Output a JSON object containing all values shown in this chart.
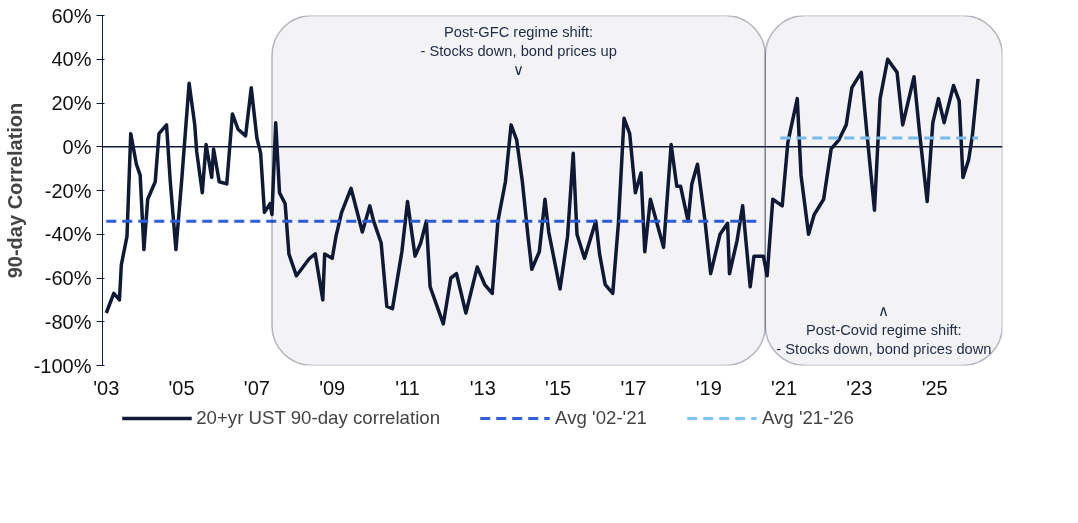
{
  "chart_data": {
    "type": "line",
    "ylabel": "90-day Correlation",
    "xlim": [
      2002.9,
      2026.8
    ],
    "ylim": [
      -100,
      60
    ],
    "xticks": [
      {
        "value": 2003,
        "label": "'03"
      },
      {
        "value": 2005,
        "label": "'05"
      },
      {
        "value": 2007,
        "label": "'07"
      },
      {
        "value": 2009,
        "label": "'09"
      },
      {
        "value": 2011,
        "label": "'11"
      },
      {
        "value": 2013,
        "label": "'13"
      },
      {
        "value": 2015,
        "label": "'15"
      },
      {
        "value": 2017,
        "label": "'17"
      },
      {
        "value": 2019,
        "label": "'19"
      },
      {
        "value": 2021,
        "label": "'21"
      },
      {
        "value": 2023,
        "label": "'23"
      },
      {
        "value": 2025,
        "label": "'25"
      }
    ],
    "yticks": [
      {
        "value": -100,
        "label": "-100%"
      },
      {
        "value": -80,
        "label": "-80%"
      },
      {
        "value": -60,
        "label": "-60%"
      },
      {
        "value": -40,
        "label": "-40%"
      },
      {
        "value": -20,
        "label": "-20%"
      },
      {
        "value": 0,
        "label": "0%"
      },
      {
        "value": 20,
        "label": "20%"
      },
      {
        "value": 40,
        "label": "40%"
      },
      {
        "value": 60,
        "label": "60%"
      }
    ],
    "grid": false,
    "legend": "bottom",
    "marker": "none",
    "series": [
      {
        "name": "20+yr UST 90-day correlation",
        "color": "#0f1a36",
        "line_style": "solid",
        "x": [
          2003.0,
          2003.2,
          2003.35,
          2003.4,
          2003.55,
          2003.65,
          2003.8,
          2003.9,
          2004.0,
          2004.1,
          2004.3,
          2004.4,
          2004.6,
          2004.7,
          2004.85,
          2005.0,
          2005.2,
          2005.35,
          2005.4,
          2005.55,
          2005.65,
          2005.8,
          2005.85,
          2006.0,
          2006.2,
          2006.35,
          2006.5,
          2006.7,
          2006.85,
          2007.0,
          2007.1,
          2007.2,
          2007.35,
          2007.4,
          2007.5,
          2007.6,
          2007.75,
          2007.85,
          2008.05,
          2008.4,
          2008.55,
          2008.75,
          2008.8,
          2009.0,
          2009.1,
          2009.25,
          2009.5,
          2009.8,
          2010.0,
          2010.1,
          2010.3,
          2010.45,
          2010.6,
          2010.85,
          2011.0,
          2011.2,
          2011.35,
          2011.5,
          2011.6,
          2011.95,
          2012.15,
          2012.3,
          2012.55,
          2012.85,
          2013.05,
          2013.25,
          2013.4,
          2013.6,
          2013.75,
          2013.9,
          2014.05,
          2014.2,
          2014.3,
          2014.5,
          2014.65,
          2014.75,
          2015.05,
          2015.25,
          2015.4,
          2015.5,
          2015.7,
          2016.0,
          2016.1,
          2016.25,
          2016.45,
          2016.6,
          2016.75,
          2016.9,
          2017.05,
          2017.2,
          2017.3,
          2017.45,
          2017.8,
          2018.0,
          2018.15,
          2018.25,
          2018.45,
          2018.55,
          2018.7,
          2018.9,
          2019.05,
          2019.3,
          2019.5,
          2019.55,
          2019.75,
          2019.9,
          2020.1,
          2020.2,
          2020.45,
          2020.55,
          2020.7,
          2020.95,
          2021.1,
          2021.35,
          2021.45,
          2021.65,
          2021.8,
          2022.05,
          2022.25,
          2022.45,
          2022.65,
          2022.8,
          2023.05,
          2023.2,
          2023.4,
          2023.55,
          2023.75,
          2024.0,
          2024.15,
          2024.45,
          2024.6,
          2024.8,
          2024.95,
          2025.1,
          2025.25,
          2025.5,
          2025.65,
          2025.75,
          2025.9,
          2026.0,
          2026.15
        ],
        "values": [
          -76,
          -67,
          -70,
          -54,
          -41,
          6,
          -8,
          -13,
          -47,
          -24,
          -16,
          6,
          10,
          -16,
          -47,
          -16,
          29,
          10,
          -2,
          -21,
          1,
          -14,
          -1,
          -16,
          -17,
          15,
          8,
          5,
          27,
          4,
          -3,
          -30,
          -26,
          -31,
          11,
          -21,
          -26,
          -49,
          -59,
          -51,
          -49,
          -70,
          -49,
          -51,
          -41,
          -30,
          -19,
          -39,
          -27,
          -34,
          -44,
          -73,
          -74,
          -48,
          -25,
          -50,
          -44,
          -34,
          -64,
          -81,
          -60,
          -58,
          -76,
          -55,
          -63,
          -67,
          -34,
          -16,
          10,
          3,
          -16,
          -41,
          -56,
          -48,
          -24,
          -39,
          -65,
          -41,
          -3,
          -40,
          -51,
          -34,
          -49,
          -63,
          -67,
          -35,
          13,
          6,
          -21,
          -12,
          -48,
          -24,
          -46,
          1,
          -18,
          -18,
          -34,
          -17,
          -8,
          -34,
          -58,
          -40,
          -35,
          -58,
          -43,
          -27,
          -64,
          -50,
          -50,
          -59,
          -24,
          -27,
          2,
          22,
          -13,
          -40,
          -31,
          -24,
          -1,
          3,
          10,
          27,
          34,
          6,
          -29,
          22,
          40,
          34,
          10,
          32,
          6,
          -25,
          11,
          22,
          11,
          28,
          21,
          -14,
          -6,
          5,
          31
        ]
      },
      {
        "name": "Avg '02-'21",
        "color": "#2f5fe0",
        "line_style": "dashed",
        "x": [
          2003.0,
          2020.3
        ],
        "values": [
          -34,
          -34
        ]
      },
      {
        "name": "Avg '21-'26",
        "color": "#7ec3f5",
        "line_style": "dashed",
        "x": [
          2020.9,
          2026.15
        ],
        "values": [
          4,
          4
        ]
      }
    ],
    "ref_lines": [
      {
        "axis": "y",
        "value": 0,
        "color": "#0f1a36"
      }
    ],
    "bands": [
      {
        "axis": "x",
        "from": 2007.4,
        "to": 2020.5,
        "color": "#0f1a36",
        "label": "Post-GFC regime shift:\n- Stocks down, bond prices up\n∨"
      },
      {
        "axis": "x",
        "from": 2020.5,
        "to": 2026.8,
        "color": "#0f1a36",
        "label": "∧\nPost-Covid regime shift:\n- Stocks down, bond prices down"
      }
    ]
  }
}
